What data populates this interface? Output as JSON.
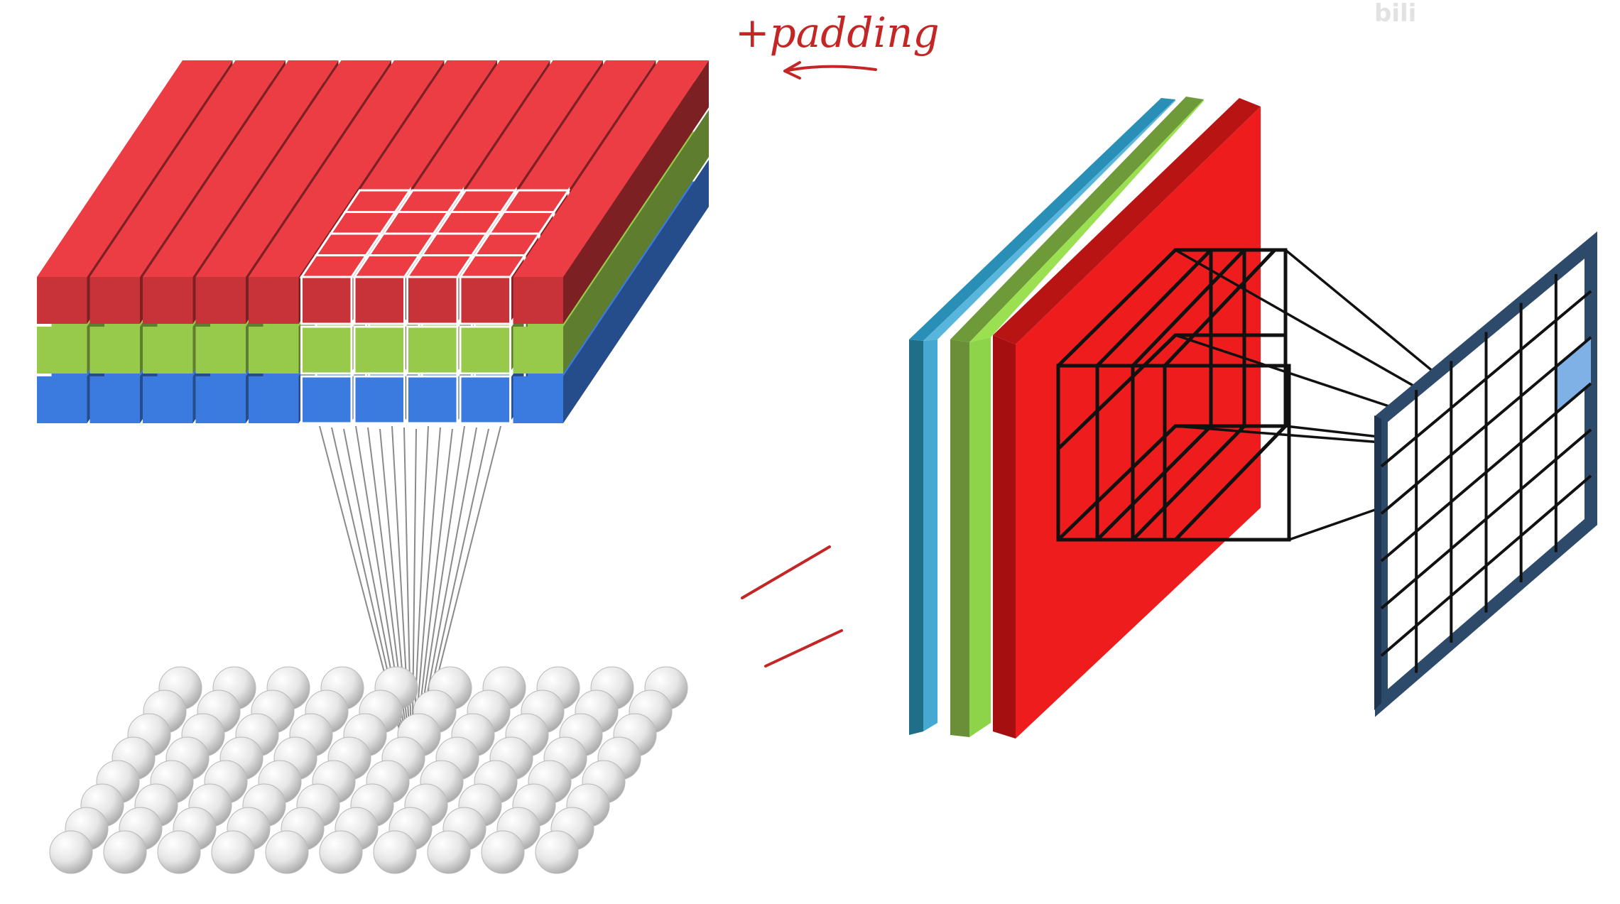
{
  "annotation": {
    "text": "+padding"
  },
  "watermark": {
    "text": "bili"
  },
  "colors": {
    "red": "#c8333a",
    "green": "#97c94a",
    "blue": "#3b7be0",
    "plate_blue": "#2a8fb6",
    "plate_green": "#8dd44a",
    "plate_red": "#ee1c1c",
    "output_frame": "#2e4a6b",
    "highlight_cell": "#7fb0e6",
    "ink": "#c42626"
  },
  "input_volume": {
    "channels": [
      "red",
      "green",
      "blue"
    ],
    "rows": 10,
    "cols": 10,
    "kernel": 4
  },
  "output_grid": {
    "rows": 6,
    "cols": 6
  },
  "icons": [
    "padding-arrow-icon",
    "equivalence-mark-icon"
  ]
}
